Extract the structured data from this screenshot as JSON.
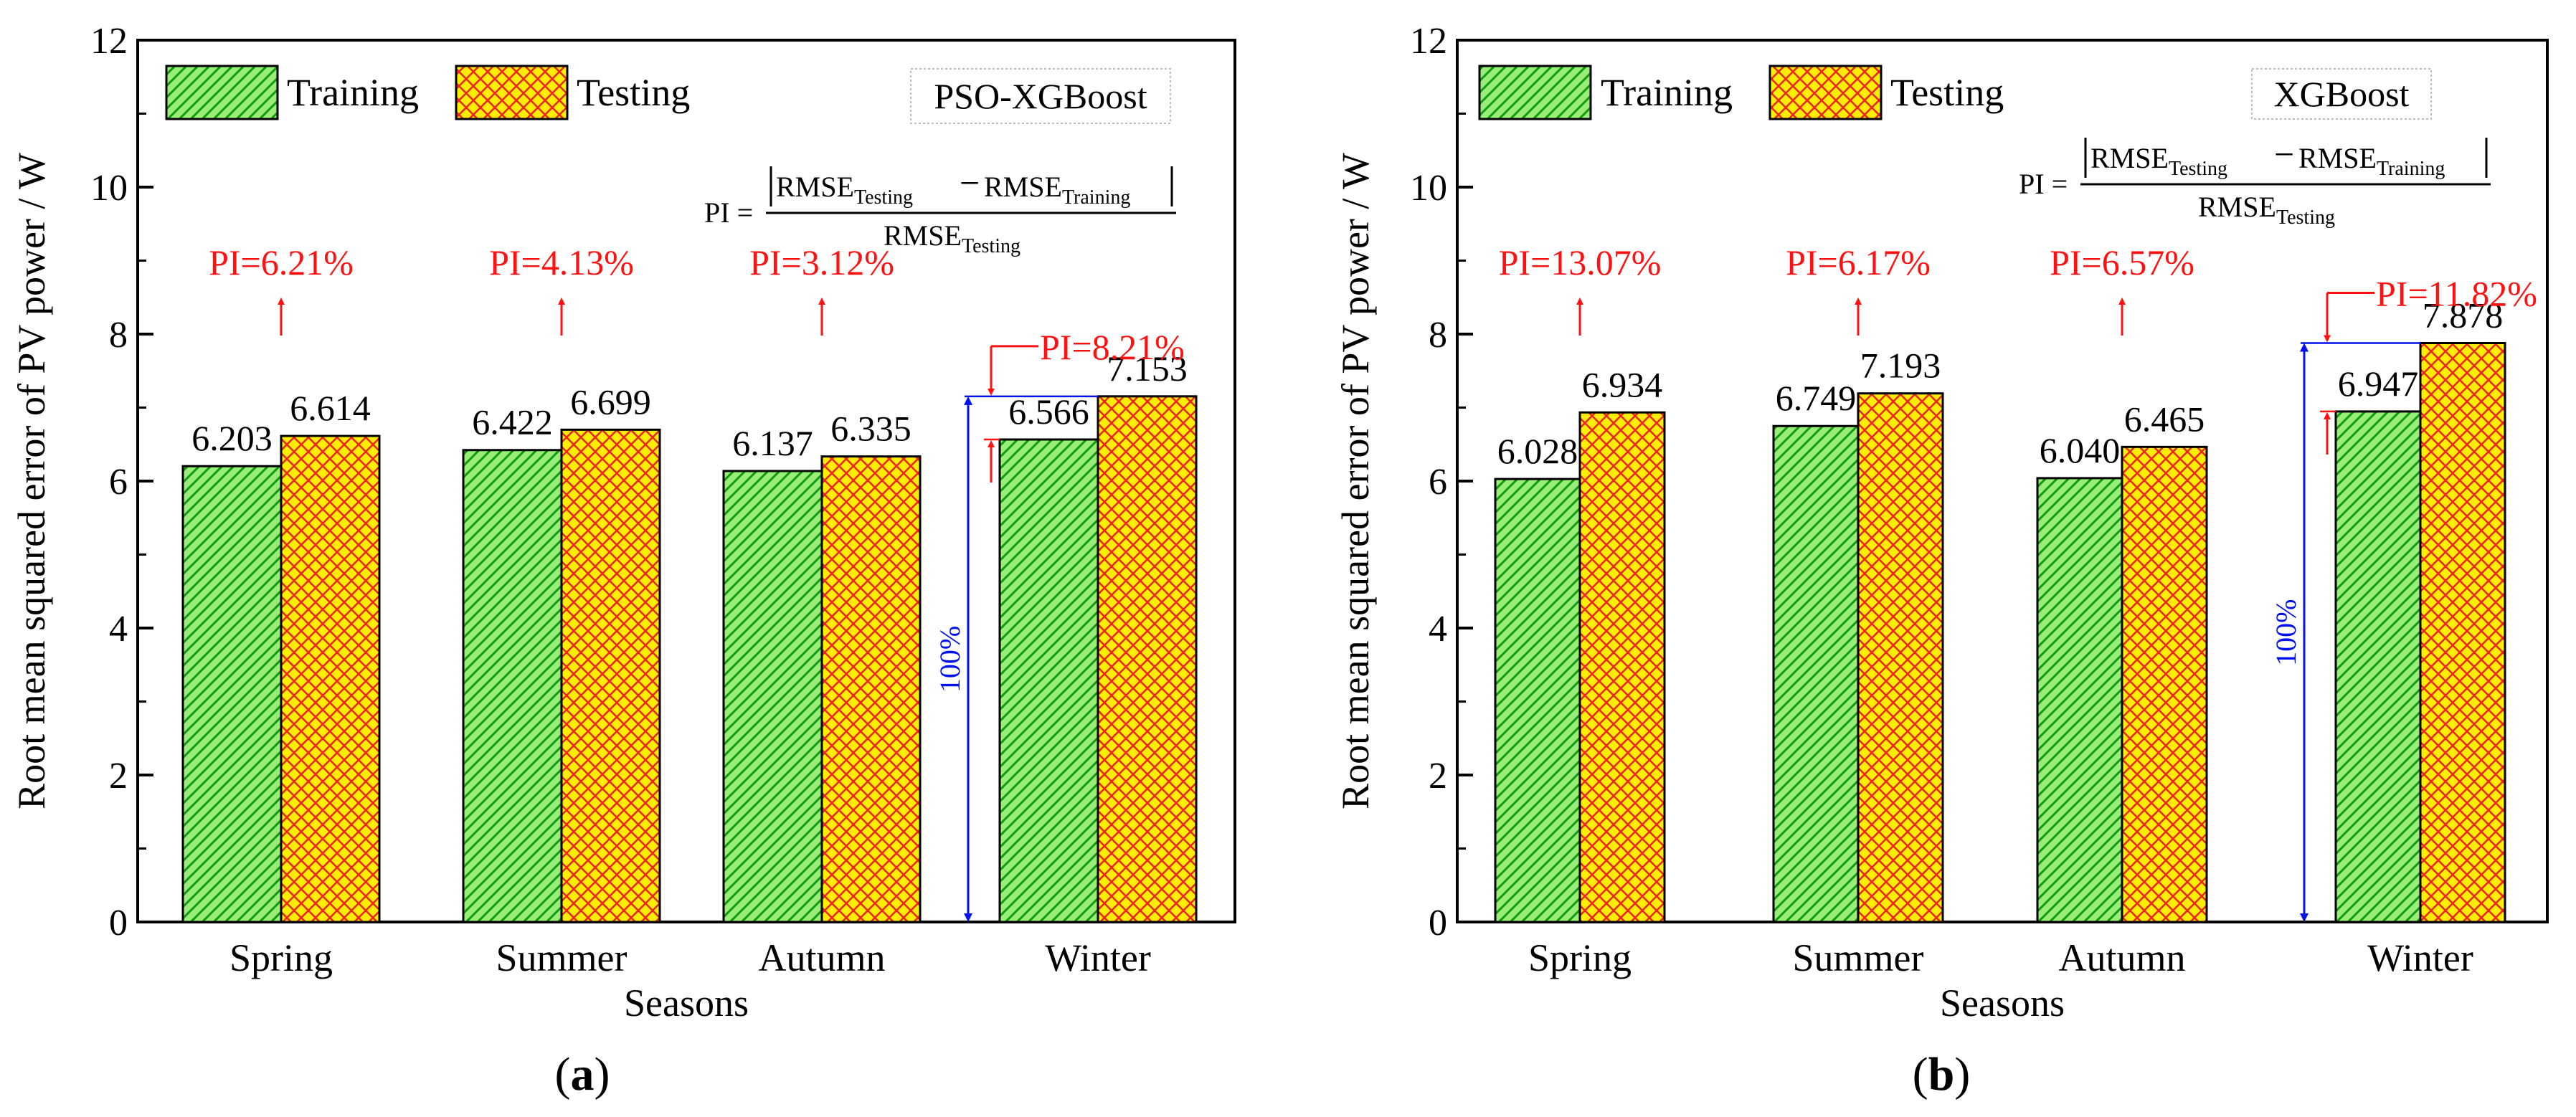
{
  "colors": {
    "training_fill": "#99ee77",
    "training_hatch": "#119911",
    "testing_fill": "#ffee00",
    "testing_hatch": "#ee2222",
    "pi_text": "#ff1111",
    "span_arrow": "#0011ee",
    "axis": "#000000"
  },
  "chart_data": [
    {
      "panel_label": "a",
      "type": "bar",
      "model_label": "PSO-XGBoost",
      "xlabel": "Seasons",
      "ylabel": "Root mean squared error of PV power / W",
      "categories": [
        "Spring",
        "Summer",
        "Autumn",
        "Winter"
      ],
      "series": [
        {
          "name": "Training",
          "values": [
            6.203,
            6.422,
            6.137,
            6.566
          ],
          "labels": [
            "6.203",
            "6.422",
            "6.137",
            "6.566"
          ]
        },
        {
          "name": "Testing",
          "values": [
            6.614,
            6.699,
            6.335,
            7.153
          ],
          "labels": [
            "6.614",
            "6.699",
            "6.335",
            "7.153"
          ]
        }
      ],
      "pi_labels": [
        "PI=6.21%",
        "PI=4.13%",
        "PI=3.12%",
        "PI=8.21%"
      ],
      "ylim": [
        0,
        12
      ],
      "yticks": [
        0,
        2,
        4,
        6,
        8,
        10,
        12
      ],
      "grid": false,
      "legend_position": "top-left",
      "hundred_percent_label": "100%",
      "formula": {
        "lhs": "PI =",
        "num_a": "RMSE",
        "num_a_sub": "Testing",
        "minus": "−",
        "num_b": "RMSE",
        "num_b_sub": "Training",
        "den": "RMSE",
        "den_sub": "Testing"
      }
    },
    {
      "panel_label": "b",
      "type": "bar",
      "model_label": "XGBoost",
      "xlabel": "Seasons",
      "ylabel": "Root mean squared error of PV power / W",
      "categories": [
        "Spring",
        "Summer",
        "Autumn",
        "Winter"
      ],
      "series": [
        {
          "name": "Training",
          "values": [
            6.028,
            6.749,
            6.04,
            6.947
          ],
          "labels": [
            "6.028",
            "6.749",
            "6.040",
            "6.947"
          ]
        },
        {
          "name": "Testing",
          "values": [
            6.934,
            7.193,
            6.465,
            7.878
          ],
          "labels": [
            "6.934",
            "7.193",
            "6.465",
            "7.878"
          ]
        }
      ],
      "pi_labels": [
        "PI=13.07%",
        "PI=6.17%",
        "PI=6.57%",
        "PI=11.82%"
      ],
      "ylim": [
        0,
        12
      ],
      "yticks": [
        0,
        2,
        4,
        6,
        8,
        10,
        12
      ],
      "grid": false,
      "legend_position": "top-left",
      "hundred_percent_label": "100%",
      "formula": {
        "lhs": "PI =",
        "num_a": "RMSE",
        "num_a_sub": "Testing",
        "minus": "−",
        "num_b": "RMSE",
        "num_b_sub": "Training",
        "den": "RMSE",
        "den_sub": "Testing"
      }
    }
  ]
}
